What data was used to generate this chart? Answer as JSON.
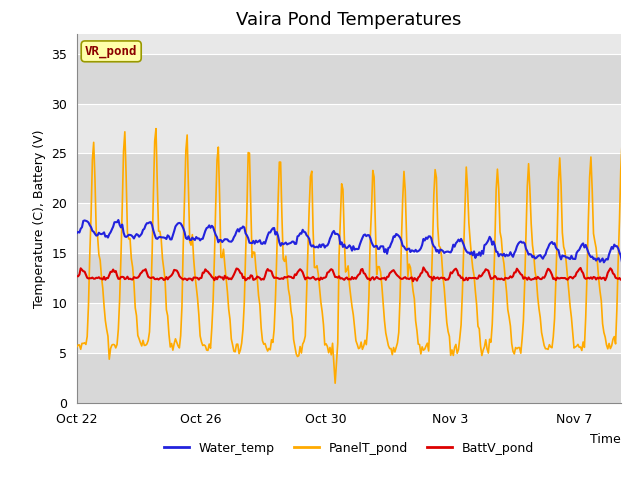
{
  "title": "Vaira Pond Temperatures",
  "xlabel": "Time",
  "ylabel": "Temperature (C), Battery (V)",
  "ylim": [
    0,
    37
  ],
  "yticks": [
    0,
    5,
    10,
    15,
    20,
    25,
    30,
    35
  ],
  "xtick_labels": [
    "Oct 22",
    "Oct 26",
    "Oct 30",
    "Nov 3",
    "Nov 7"
  ],
  "xtick_positions": [
    0,
    4,
    8,
    12,
    16
  ],
  "n_days": 18,
  "pts_per_day": 24,
  "xlim_end": 17.5,
  "background_color": "#ffffff",
  "plot_bg_color": "#e8e8e8",
  "band_light_color": "#d8d8d8",
  "band_dark_color": "#e8e8e8",
  "grid_color": "#ffffff",
  "water_temp_color": "#2222dd",
  "panel_temp_color": "#ffaa00",
  "batt_color": "#dd0000",
  "legend_labels": [
    "Water_temp",
    "PanelT_pond",
    "BattV_pond"
  ],
  "site_label": "VR_pond",
  "site_label_color": "#8b0000",
  "site_label_bg": "#ffffaa",
  "site_label_edge": "#999900",
  "title_fontsize": 13,
  "axis_fontsize": 9,
  "tick_fontsize": 9,
  "legend_fontsize": 9,
  "water_linewidth": 1.5,
  "panel_linewidth": 1.2,
  "batt_linewidth": 1.5
}
